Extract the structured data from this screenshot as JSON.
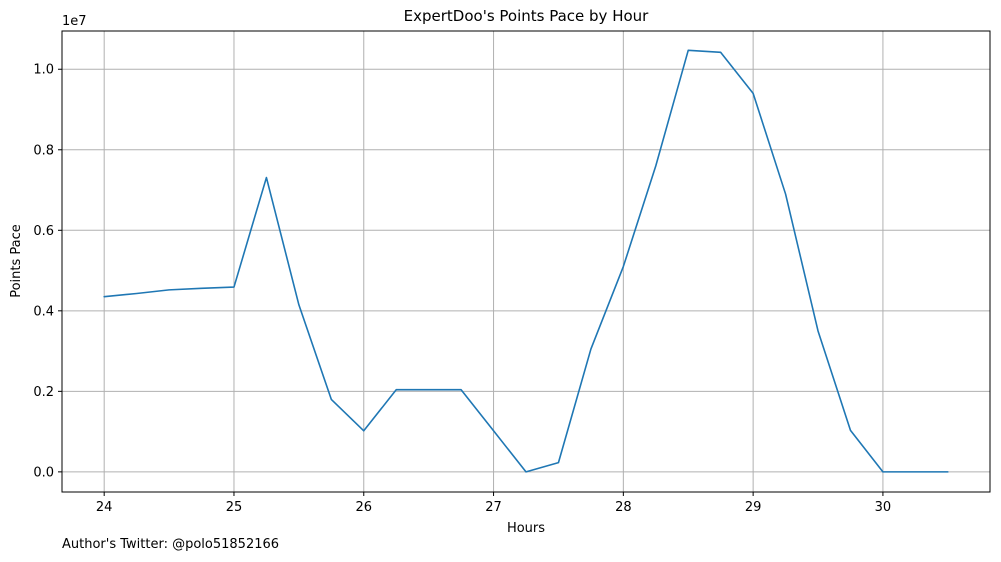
{
  "footer": {
    "credit": "Author's Twitter: @polo51852166"
  },
  "chart_data": {
    "type": "line",
    "title": "ExpertDoo's Points Pace by Hour",
    "xlabel": "Hours",
    "ylabel": "Points Pace",
    "y_offset_label": "1e7",
    "grid": true,
    "xlim": [
      23.675,
      30.825
    ],
    "ylim": [
      -0.05,
      1.095
    ],
    "x_ticks": [
      24,
      25,
      26,
      27,
      28,
      29,
      30
    ],
    "x_tick_labels": [
      "24",
      "25",
      "26",
      "27",
      "28",
      "29",
      "30"
    ],
    "y_ticks": [
      0.0,
      0.2,
      0.4,
      0.6,
      0.8,
      1.0
    ],
    "y_tick_labels": [
      "0.0",
      "0.2",
      "0.4",
      "0.6",
      "0.8",
      "1.0"
    ],
    "line_color": "#1f77b4",
    "grid_color": "#b0b0b0",
    "series": [
      {
        "x": [
          24.0,
          24.25,
          24.5,
          24.75,
          25.0,
          25.25,
          25.5,
          25.75,
          26.0,
          26.25,
          26.5,
          26.75,
          27.0,
          27.25,
          27.5,
          27.75,
          28.0,
          28.25,
          28.5,
          28.75,
          29.0,
          29.25,
          29.5,
          29.75,
          30.0,
          30.25,
          30.5
        ],
        "values": [
          0.435,
          0.443,
          0.452,
          0.456,
          0.459,
          0.731,
          0.415,
          0.18,
          0.102,
          0.204,
          0.204,
          0.204,
          0.102,
          0.0,
          0.023,
          0.305,
          0.51,
          0.76,
          1.047,
          1.042,
          0.94,
          0.69,
          0.35,
          0.103,
          0.0,
          0.0,
          0.0
        ]
      }
    ]
  }
}
